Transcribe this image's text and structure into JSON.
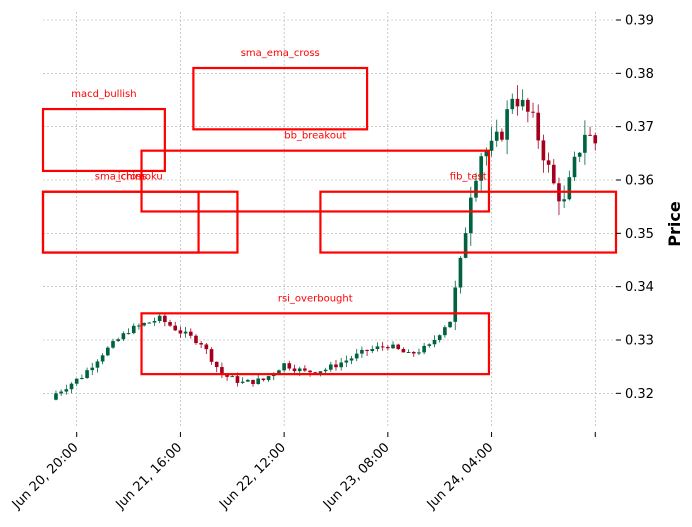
{
  "chart_data": {
    "type": "candlestick",
    "ylabel": "Price",
    "ylim": [
      0.3135,
      0.3915
    ],
    "yticks": [
      0.32,
      0.33,
      0.34,
      0.35,
      0.36,
      0.37,
      0.38,
      0.39
    ],
    "ytick_labels": [
      "0.32",
      "0.33",
      "0.34",
      "0.35",
      "0.36",
      "0.37",
      "0.38",
      "0.39"
    ],
    "xticks": [
      {
        "label": "Jun 20, 20:00",
        "hours": 4
      },
      {
        "label": "Jun 21, 16:00",
        "hours": 24
      },
      {
        "label": "Jun 22, 12:00",
        "hours": 44
      },
      {
        "label": "Jun 23, 08:00",
        "hours": 64
      },
      {
        "label": "Jun 24, 04:00",
        "hours": 84
      },
      {
        "label": "",
        "hours": 104
      }
    ],
    "x_start": "Jun 20, 16:00",
    "bar_hours": 1,
    "xlim_hours": [
      -2.5,
      108
    ],
    "grid": true,
    "up_color": "#006340",
    "down_color": "#a3001e",
    "box_color": "#ff0000",
    "close_keypoints": [
      [
        0,
        0.32
      ],
      [
        5,
        0.3232
      ],
      [
        9,
        0.3275
      ],
      [
        14,
        0.3318
      ],
      [
        17,
        0.333
      ],
      [
        20,
        0.334
      ],
      [
        24,
        0.3315
      ],
      [
        28,
        0.3295
      ],
      [
        32,
        0.3235
      ],
      [
        36,
        0.322
      ],
      [
        40,
        0.3225
      ],
      [
        44,
        0.3255
      ],
      [
        48,
        0.324
      ],
      [
        52,
        0.3245
      ],
      [
        56,
        0.3262
      ],
      [
        60,
        0.328
      ],
      [
        64,
        0.329
      ],
      [
        68,
        0.3272
      ],
      [
        72,
        0.3288
      ],
      [
        76,
        0.334
      ],
      [
        78,
        0.344
      ],
      [
        80,
        0.358
      ],
      [
        82,
        0.365
      ],
      [
        84,
        0.366
      ],
      [
        86,
        0.369
      ],
      [
        88,
        0.376
      ],
      [
        90,
        0.374
      ],
      [
        92,
        0.371
      ],
      [
        94,
        0.365
      ],
      [
        96,
        0.359
      ],
      [
        98,
        0.3555
      ],
      [
        100,
        0.363
      ],
      [
        102,
        0.369
      ],
      [
        104,
        0.367
      ]
    ],
    "annotations": [
      {
        "label": "macd_bullish",
        "x0": -2.5,
        "x1": 21,
        "y0": 0.3617,
        "y1": 0.3733
      },
      {
        "label": "sma_ema_cross",
        "x0": 26.5,
        "x1": 60,
        "y0": 0.3695,
        "y1": 0.381
      },
      {
        "label": "bb_breakout",
        "x0": 16.5,
        "x1": 83.5,
        "y0": 0.3541,
        "y1": 0.3655
      },
      {
        "label": "ichimoku",
        "x0": -2.5,
        "x1": 35,
        "y0": 0.3464,
        "y1": 0.3578
      },
      {
        "label": "sma_cross",
        "x0": -2.5,
        "x1": 27.5,
        "y0": 0.3464,
        "y1": 0.3578
      },
      {
        "label": "fib_test",
        "x0": 51,
        "x1": 108,
        "y0": 0.3464,
        "y1": 0.3578
      },
      {
        "label": "rsi_overbought",
        "x0": 16.5,
        "x1": 83.5,
        "y0": 0.3236,
        "y1": 0.335
      }
    ]
  }
}
